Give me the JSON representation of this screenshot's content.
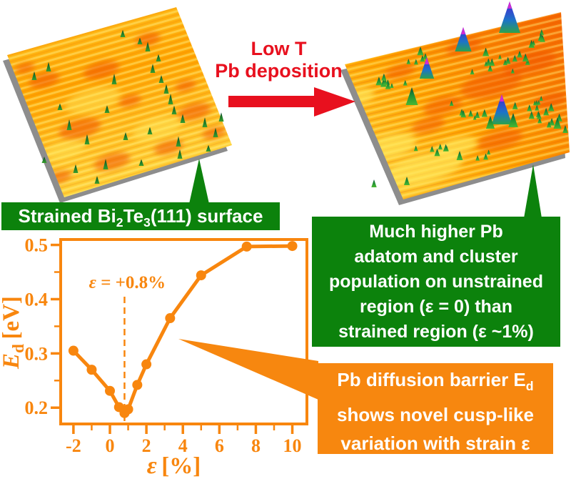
{
  "palette": {
    "red": "#e8101e",
    "green": "#0c820c",
    "orange": "#f7870f",
    "chart_orange": "#f8860e",
    "surface_yellow": "#ffd43c",
    "surface_orange": "#ffa400",
    "shadow_gray": "#8d8d8d"
  },
  "arrow_label": {
    "line1": "Low T",
    "line2": "Pb deposition"
  },
  "banner": {
    "part1": "Strained Bi",
    "sub1": "2",
    "part2": "Te",
    "sub2": "3",
    "part3": "(111) surface"
  },
  "green_box": {
    "lines": [
      "Much higher Pb",
      "adatom and cluster",
      "population on unstrained",
      "region (ε = 0) than",
      "strained region (ε ~1%)"
    ]
  },
  "orange_box": {
    "line1_pre": "Pb diffusion barrier E",
    "line1_sub": "d",
    "line2": "shows novel cusp-like",
    "line3": "variation with strain ε"
  },
  "chart_data": {
    "type": "line",
    "x": [
      -2,
      -1,
      0,
      0.5,
      0.8,
      1,
      1.5,
      2,
      3.3,
      5,
      7.5,
      10
    ],
    "y": [
      0.305,
      0.27,
      0.231,
      0.201,
      0.19,
      0.197,
      0.242,
      0.28,
      0.365,
      0.444,
      0.497,
      0.498
    ],
    "xlabel_symbol": "ε",
    "xlabel_unit": "[%]",
    "ylabel_main": "E",
    "ylabel_sub": "d",
    "ylabel_unit": "[eV]",
    "xlim": [
      -2.7,
      10.8
    ],
    "ylim": [
      0.17,
      0.51
    ],
    "xticks_major": [
      -2,
      0,
      2,
      4,
      6,
      8,
      10
    ],
    "xticks_minor": [
      -1,
      1,
      3,
      5,
      7,
      9
    ],
    "yticks_major": [
      0.2,
      0.3,
      0.4,
      0.5
    ],
    "yticks_minor": [
      0.25,
      0.35,
      0.45
    ],
    "annotation": {
      "symbol": "ε",
      "rest": " = +0.8%",
      "x": 0.8,
      "label": "ε = +0.8%"
    },
    "grid": false,
    "legend": "none",
    "marker": "circle",
    "line_color": "#f8860e"
  }
}
